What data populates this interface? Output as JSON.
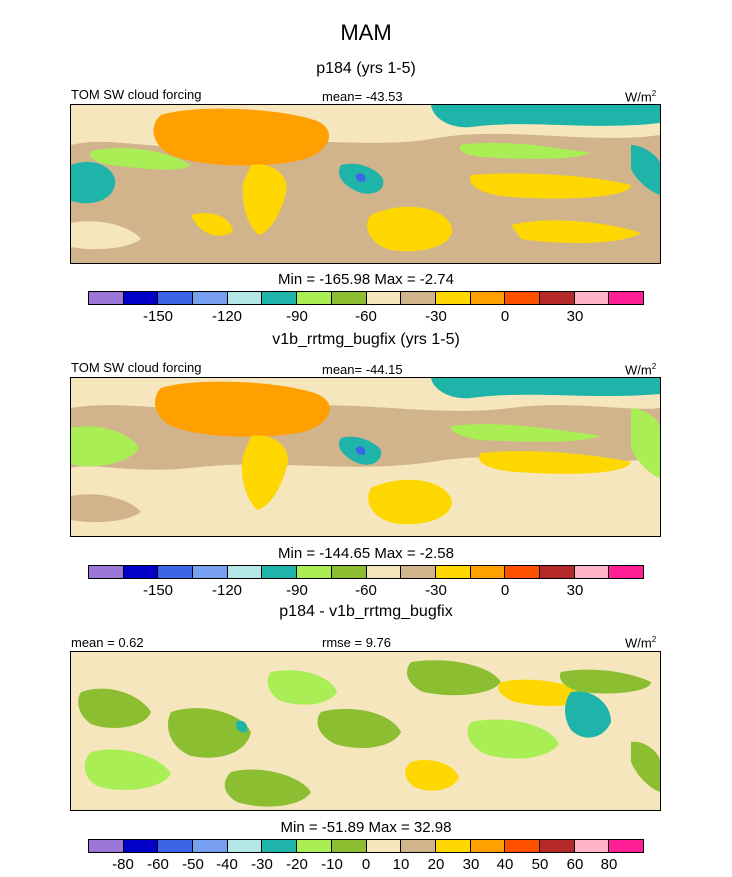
{
  "figure": {
    "title": "MAM",
    "colors": {
      "lavender": "#9a77d6",
      "navy": "#0000c8",
      "blue": "#3c64e6",
      "lightblue": "#78a0f0",
      "paleblue": "#b4e6e6",
      "teal": "#1eb4aa",
      "lightgreen": "#aaee55",
      "green": "#8cbe32",
      "beige": "#f5e6be",
      "tan": "#d2b48c",
      "yellow": "#ffd700",
      "orange": "#ffa000",
      "redorange": "#ff5000",
      "darkred": "#b42828",
      "pink": "#ffb4c8",
      "magenta": "#ff1e96"
    }
  },
  "chart_data": [
    {
      "type": "heatmap",
      "panel_title": "p184 (yrs 1-5)",
      "left_label": "TOM SW cloud forcing",
      "center_label": "mean= -43.53",
      "units_label": "W/m",
      "units_exp": "2",
      "minmax_label": "Min = -165.98 Max =  -2.74",
      "colorbar_ticks": [
        "-150",
        "-120",
        "-90",
        "-60",
        "-30",
        "0",
        "30"
      ],
      "colorbar_levels": [
        -165,
        -150,
        -135,
        -120,
        -105,
        -90,
        -75,
        -60,
        -45,
        -30,
        -15,
        0,
        15,
        30,
        45
      ],
      "variable": "TOM SW cloud forcing",
      "mean": -43.53,
      "min": -165.98,
      "max": -2.74
    },
    {
      "type": "heatmap",
      "panel_title": "v1b_rrtmg_bugfix (yrs 1-5)",
      "left_label": "TOM SW cloud forcing",
      "center_label": "mean= -44.15",
      "units_label": "W/m",
      "units_exp": "2",
      "minmax_label": "Min = -144.65 Max =  -2.58",
      "colorbar_ticks": [
        "-150",
        "-120",
        "-90",
        "-60",
        "-30",
        "0",
        "30"
      ],
      "colorbar_levels": [
        -165,
        -150,
        -135,
        -120,
        -105,
        -90,
        -75,
        -60,
        -45,
        -30,
        -15,
        0,
        15,
        30,
        45
      ],
      "variable": "TOM SW cloud forcing",
      "mean": -44.15,
      "min": -144.65,
      "max": -2.58
    },
    {
      "type": "heatmap",
      "panel_title": "p184 - v1b_rrtmg_bugfix",
      "left_label": "mean =   0.62",
      "center_label": "rmse =   9.76",
      "units_label": "W/m",
      "units_exp": "2",
      "minmax_label": "Min = -51.89 Max =  32.98",
      "colorbar_ticks": [
        "-80",
        "-60",
        "-50",
        "-40",
        "-30",
        "-20",
        "-10",
        "0",
        "10",
        "20",
        "30",
        "40",
        "50",
        "60",
        "80"
      ],
      "colorbar_levels": [
        -80,
        -60,
        -50,
        -40,
        -30,
        -20,
        -10,
        0,
        10,
        20,
        30,
        40,
        50,
        60,
        80
      ],
      "mean": 0.62,
      "rmse": 9.76,
      "min": -51.89,
      "max": 32.98
    }
  ]
}
